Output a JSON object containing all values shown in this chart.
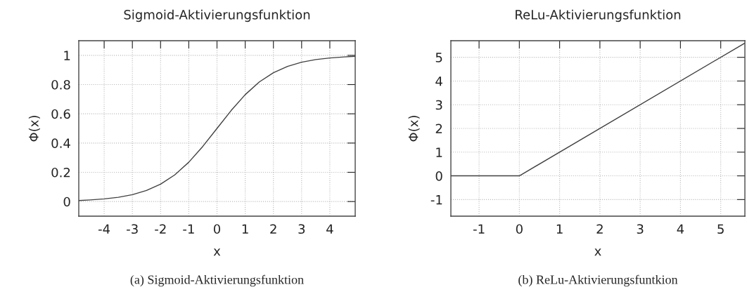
{
  "chart_data": [
    {
      "type": "line",
      "title": "Sigmoid-Aktivierungsfunktion",
      "xlabel": "x",
      "ylabel": "Φ(x)",
      "x": [
        -4.9,
        -4.5,
        -4,
        -3.5,
        -3,
        -2.5,
        -2,
        -1.5,
        -1,
        -0.5,
        0,
        0.5,
        1,
        1.5,
        2,
        2.5,
        3,
        3.5,
        4,
        4.5,
        4.9
      ],
      "series": [
        {
          "color": "#404040",
          "values": [
            0.007,
            0.011,
            0.018,
            0.029,
            0.047,
            0.076,
            0.119,
            0.182,
            0.269,
            0.378,
            0.5,
            0.622,
            0.731,
            0.818,
            0.881,
            0.924,
            0.953,
            0.971,
            0.982,
            0.989,
            0.993
          ]
        }
      ],
      "xlim": [
        -4.9,
        4.9
      ],
      "ylim": [
        -0.1,
        1.1
      ],
      "xticks": [
        -4,
        -3,
        -2,
        -1,
        0,
        1,
        2,
        3,
        4
      ],
      "yticks": [
        0,
        0.2,
        0.4,
        0.6,
        0.8,
        1
      ],
      "grid": true,
      "legend": false,
      "annotations": [
        "(a) Sigmoid-Aktivierungsfunktion"
      ]
    },
    {
      "type": "line",
      "title": "ReLu-Aktivierungsfunktion",
      "xlabel": "x",
      "ylabel": "Φ(x)",
      "x": [
        -1.7,
        0,
        5.6
      ],
      "series": [
        {
          "color": "#404040",
          "values": [
            0,
            0,
            5.6
          ]
        }
      ],
      "xlim": [
        -1.7,
        5.6
      ],
      "ylim": [
        -1.7,
        5.7
      ],
      "xticks": [
        -1,
        0,
        1,
        2,
        3,
        4,
        5
      ],
      "yticks": [
        -1,
        0,
        1,
        2,
        3,
        4,
        5
      ],
      "grid": true,
      "legend": false,
      "annotations": [
        "(b) ReLu-Aktivierungsfuntkion"
      ]
    }
  ]
}
